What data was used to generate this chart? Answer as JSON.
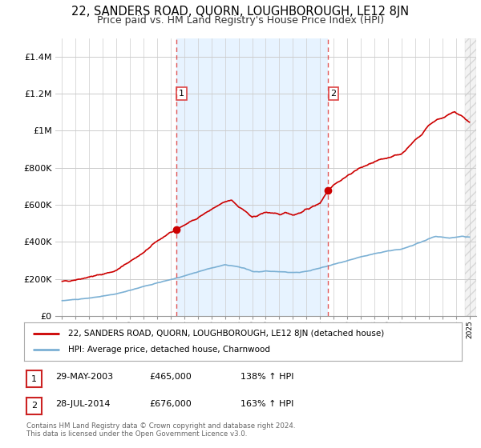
{
  "title": "22, SANDERS ROAD, QUORN, LOUGHBOROUGH, LE12 8JN",
  "subtitle": "Price paid vs. HM Land Registry's House Price Index (HPI)",
  "title_fontsize": 10.5,
  "subtitle_fontsize": 9,
  "background_color": "#ffffff",
  "grid_color": "#cccccc",
  "red_color": "#cc0000",
  "blue_color": "#7bb0d4",
  "dashed_color": "#dd4444",
  "shaded_fill_color": "#ddeeff",
  "hatch_color": "#cccccc",
  "marker1_x": 2003.4,
  "marker1_y": 465000,
  "marker2_x": 2014.57,
  "marker2_y": 676000,
  "legend_line1": "22, SANDERS ROAD, QUORN, LOUGHBOROUGH, LE12 8JN (detached house)",
  "legend_line2": "HPI: Average price, detached house, Charnwood",
  "footer": "Contains HM Land Registry data © Crown copyright and database right 2024.\nThis data is licensed under the Open Government Licence v3.0.",
  "ylim": [
    0,
    1500000
  ],
  "xlim": [
    1994.5,
    2025.5
  ],
  "yticks": [
    0,
    200000,
    400000,
    600000,
    800000,
    1000000,
    1200000,
    1400000
  ],
  "ytick_labels": [
    "£0",
    "£200K",
    "£400K",
    "£600K",
    "£800K",
    "£1M",
    "£1.2M",
    "£1.4M"
  ]
}
